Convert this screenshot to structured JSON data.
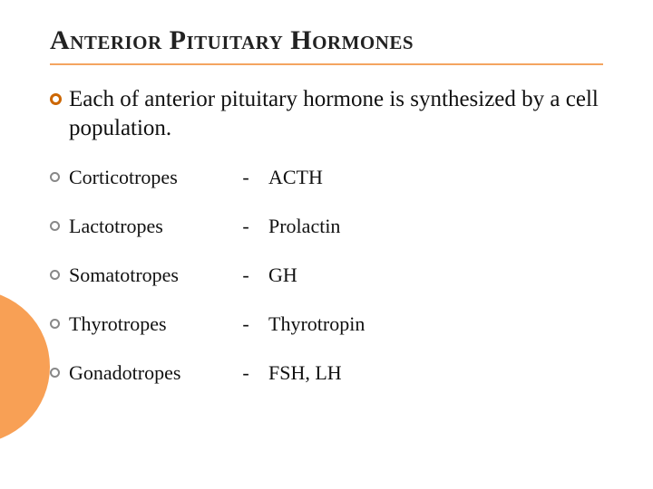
{
  "title": "Anterior Pituitary Hormones",
  "intro": "Each  of  anterior pituitary hormone is synthesized by a cell population.",
  "items": [
    {
      "cell": "Corticotropes",
      "dash": "-",
      "hormone": "ACTH"
    },
    {
      "cell": "Lactotropes",
      "dash": "-",
      "hormone": "Prolactin"
    },
    {
      "cell": "Somatotropes",
      "dash": "-",
      "hormone": "GH"
    },
    {
      "cell": "Thyrotropes",
      "dash": "-",
      "hormone": "Thyrotropin"
    },
    {
      "cell": "Gonadotropes",
      "dash": "-",
      "hormone": "FSH, LH"
    }
  ],
  "style": {
    "title_fontsize": 30,
    "intro_fontsize": 25,
    "item_fontsize": 22,
    "accent_color": "#f4a460",
    "bullet_intro_color": "#cc6600",
    "bullet_sub_color": "#888888",
    "circle_color": "#f8a055",
    "background_color": "#ffffff",
    "text_color": "#111111"
  }
}
